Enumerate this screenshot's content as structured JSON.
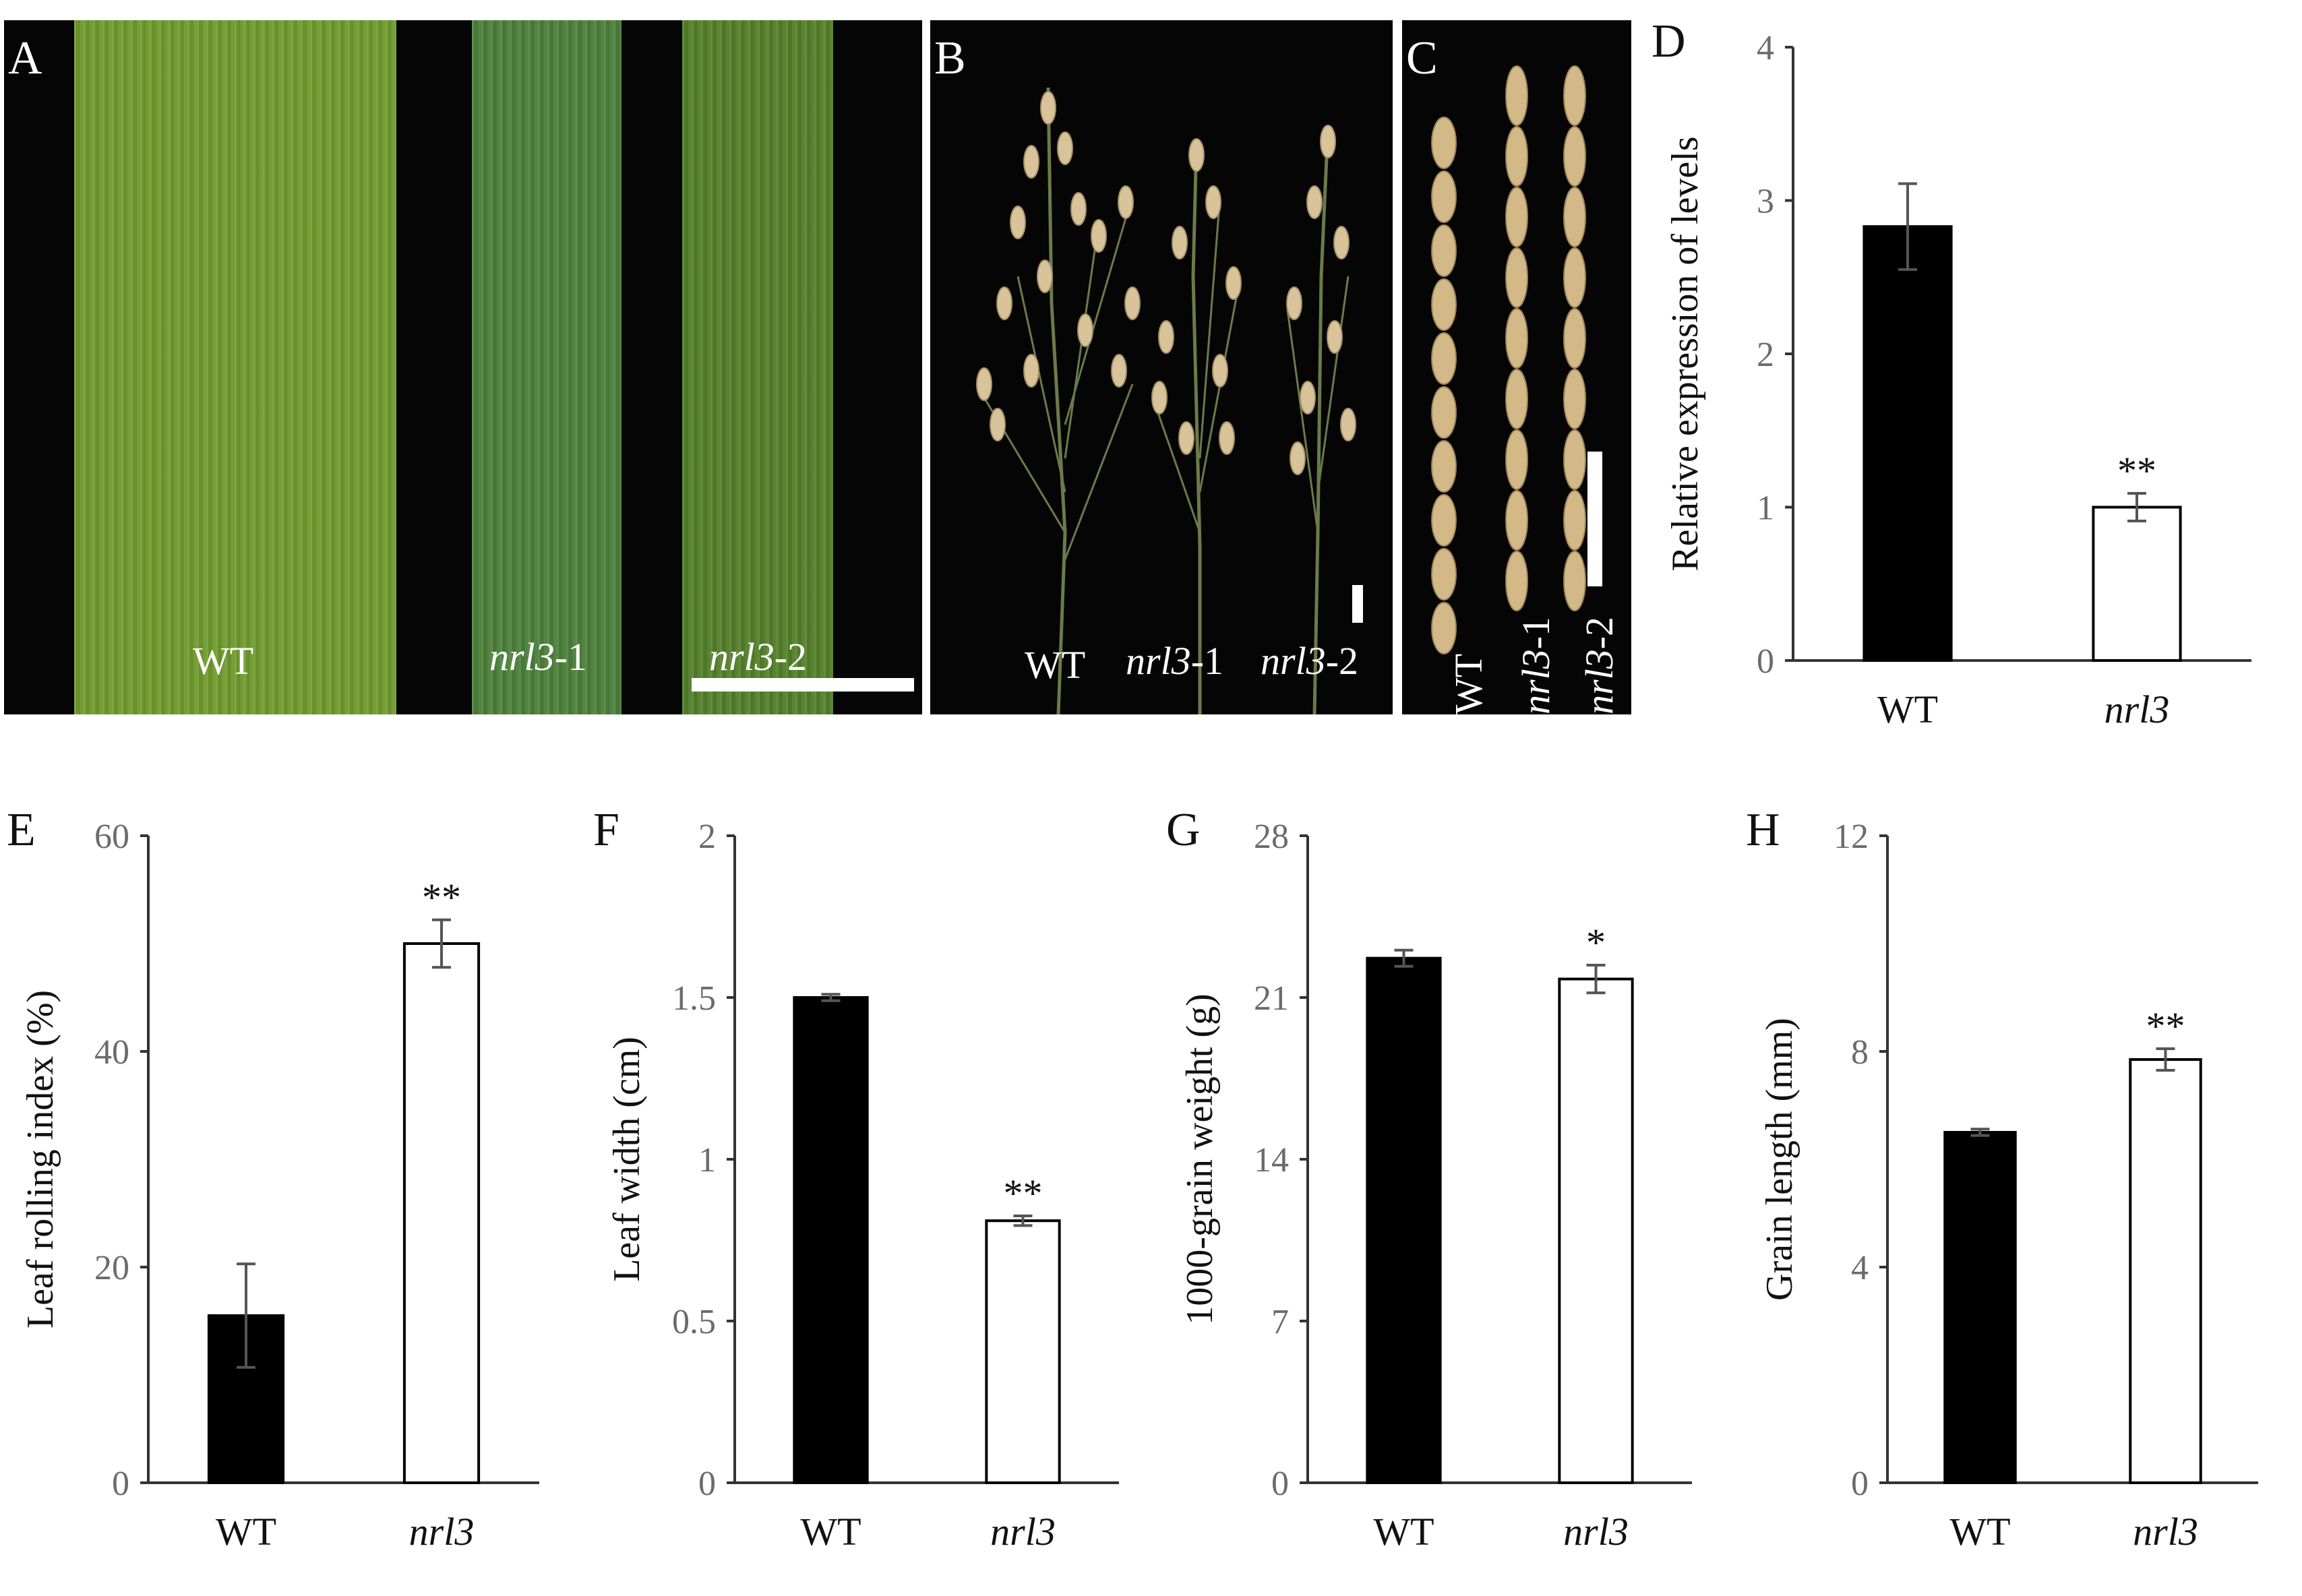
{
  "panels": {
    "a": {
      "letter": "A",
      "labels": [
        "WT",
        "nrl3",
        "-1",
        "nrl3",
        "-2"
      ]
    },
    "b": {
      "letter": "B",
      "labels": [
        "WT",
        "nrl3",
        "-1",
        "nrl3",
        "-2"
      ]
    },
    "c": {
      "letter": "C",
      "labels": [
        "WT",
        "nrl3",
        "-1",
        "nrl3",
        "-2"
      ]
    }
  },
  "colors": {
    "wt_bar": "#000000",
    "mutant_bar": "#ffffff",
    "axis": "#333333",
    "tick_text": "#6b6b6b",
    "errbar": "#555555"
  },
  "chart_data": [
    {
      "panel": "D",
      "type": "bar",
      "categories": [
        "WT",
        "nrl3"
      ],
      "values": [
        2.83,
        1.0
      ],
      "errors": [
        0.28,
        0.09
      ],
      "significance": [
        "",
        "**"
      ],
      "ylabel": "Relative expression of levels",
      "ylim": [
        0,
        4
      ],
      "yticks": [
        "0",
        "1",
        "2",
        "3",
        "4"
      ]
    },
    {
      "panel": "E",
      "type": "bar",
      "categories": [
        "WT",
        "nrl3"
      ],
      "values": [
        15.5,
        50.0
      ],
      "errors": [
        4.8,
        2.2
      ],
      "significance": [
        "",
        "**"
      ],
      "ylabel": "Leaf rolling index (%)",
      "ylim": [
        0,
        60
      ],
      "yticks": [
        "0",
        "20",
        "40",
        "60"
      ]
    },
    {
      "panel": "F",
      "type": "bar",
      "categories": [
        "WT",
        "nrl3"
      ],
      "values": [
        1.5,
        0.81
      ],
      "errors": [
        0.01,
        0.015
      ],
      "significance": [
        "",
        "**"
      ],
      "ylabel": "Leaf width (cm)",
      "ylim": [
        0,
        2
      ],
      "yticks": [
        "0",
        "0.5",
        "1",
        "1.5",
        "2"
      ]
    },
    {
      "panel": "G",
      "type": "bar",
      "categories": [
        "WT",
        "nrl3"
      ],
      "values": [
        22.7,
        21.8
      ],
      "errors": [
        0.35,
        0.6
      ],
      "significance": [
        "",
        "*"
      ],
      "ylabel": "1000-grain weight (g)",
      "ylim": [
        0,
        28
      ],
      "yticks": [
        "0",
        "7",
        "14",
        "21",
        "28"
      ]
    },
    {
      "panel": "H",
      "type": "bar",
      "categories": [
        "WT",
        "nrl3"
      ],
      "values": [
        6.5,
        7.85
      ],
      "errors": [
        0.06,
        0.2
      ],
      "significance": [
        "",
        "**"
      ],
      "ylabel": "Grain length (mm)",
      "ylim": [
        0,
        12
      ],
      "yticks": [
        "0",
        "4",
        "8",
        "12"
      ]
    }
  ]
}
